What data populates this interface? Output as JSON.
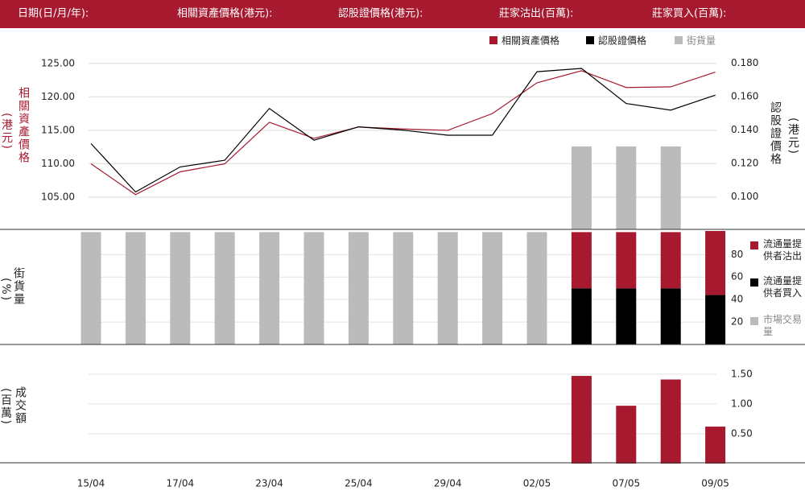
{
  "header": {
    "labels": [
      "日期(日/月/年):",
      "相關資產價格(港元):",
      "認股證價格(港元):",
      "莊家沽出(百萬):",
      "莊家買入(百萬):"
    ]
  },
  "chart_data": [
    {
      "type": "line",
      "ylabel": "相關資產價格",
      "ylabel_unit": "(港元)",
      "y2label": "認股證價格",
      "y2label_unit": "(港元)",
      "ylim": [
        100.2,
        127.5
      ],
      "yticks": [
        {
          "value": 105,
          "label": "105.00"
        },
        {
          "value": 110,
          "label": "110.00"
        },
        {
          "value": 115,
          "label": "115.00"
        },
        {
          "value": 120,
          "label": "120.00"
        },
        {
          "value": 125,
          "label": "125.00"
        }
      ],
      "y2lim": [
        0.0806,
        0.19
      ],
      "y2ticks": [
        {
          "value": 0.1,
          "label": "0.100"
        },
        {
          "value": 0.12,
          "label": "0.120"
        },
        {
          "value": 0.14,
          "label": "0.140"
        },
        {
          "value": 0.16,
          "label": "0.160"
        },
        {
          "value": 0.18,
          "label": "0.180"
        }
      ],
      "grid": true,
      "series": [
        {
          "name": "相關資產價格",
          "color": "#a6192e",
          "axis": "y",
          "values": [
            110.0,
            105.4,
            108.8,
            110.0,
            116.2,
            113.8,
            115.5,
            115.2,
            115.0,
            117.5,
            122.1,
            123.9,
            121.4,
            121.5,
            123.7
          ]
        },
        {
          "name": "認股證價格",
          "color": "#000000",
          "axis": "y2",
          "values": [
            0.132,
            0.103,
            0.118,
            0.122,
            0.153,
            0.134,
            0.142,
            0.14,
            0.137,
            0.137,
            0.175,
            0.177,
            0.156,
            0.152,
            0.161
          ]
        },
        {
          "name": "街貨量",
          "color": "#bbbbbb",
          "type": "bar",
          "axis": "y",
          "values": [
            null,
            null,
            null,
            null,
            null,
            null,
            null,
            null,
            null,
            null,
            null,
            112.6,
            112.6,
            112.6,
            null
          ]
        }
      ]
    },
    {
      "type": "stacked_bar",
      "ylabel": "街貨量",
      "ylabel_unit": "(%)",
      "ylim": [
        0,
        101
      ],
      "yticks": [
        20,
        40,
        60,
        80
      ],
      "grid": true,
      "series": [
        {
          "name": "市場交易量",
          "color": "#bbbbbb",
          "values": [
            100,
            100,
            100,
            100,
            100,
            100,
            100,
            100,
            100,
            100,
            100,
            null,
            null,
            null,
            null
          ]
        },
        {
          "name": "流通量提供者買入",
          "color": "#000000",
          "values": [
            null,
            null,
            null,
            null,
            null,
            null,
            null,
            null,
            null,
            null,
            null,
            50,
            50,
            50,
            44
          ]
        },
        {
          "name": "流通量提供者沽出",
          "color": "#a6192e",
          "values": [
            null,
            null,
            null,
            null,
            null,
            null,
            null,
            null,
            null,
            null,
            null,
            50,
            50,
            50,
            57
          ]
        }
      ]
    },
    {
      "type": "bar",
      "ylabel": "成交額",
      "ylabel_unit": "(百萬)",
      "ylim": [
        0,
        1.97
      ],
      "yticks": [
        {
          "value": 0.5,
          "label": "0.50"
        },
        {
          "value": 1.0,
          "label": "1.00"
        },
        {
          "value": 1.5,
          "label": "1.50"
        }
      ],
      "grid": true,
      "color": "#a6192e",
      "categories": [
        "15/04",
        null,
        "17/04",
        null,
        "23/04",
        null,
        "25/04",
        null,
        "29/04",
        null,
        "02/05",
        null,
        "07/05",
        null,
        "09/05"
      ],
      "values": [
        null,
        null,
        null,
        null,
        null,
        null,
        null,
        null,
        null,
        null,
        null,
        1.47,
        0.97,
        1.41,
        0.62
      ]
    }
  ]
}
